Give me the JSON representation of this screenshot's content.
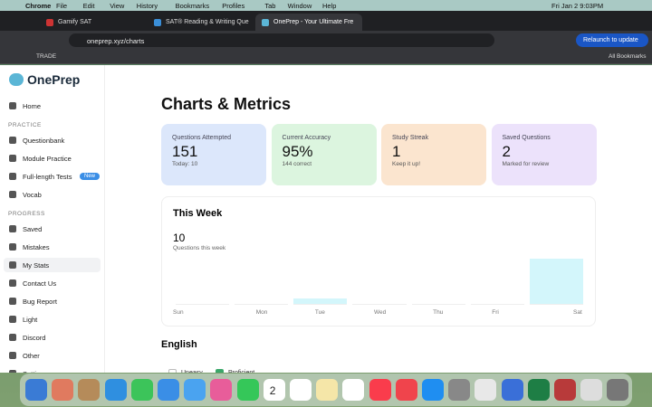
{
  "menubar": {
    "app": "Chrome",
    "menus": [
      "File",
      "Edit",
      "View",
      "History",
      "Bookmarks",
      "Profiles",
      "Tab",
      "Window",
      "Help"
    ],
    "clock": "Fri Jan 2  9:03PM"
  },
  "tabs": [
    "Gamify SAT",
    "SAT® Reading & Writing Que",
    "OnePrep - Your Ultimate Fre"
  ],
  "address": {
    "url": "oneprep.xyz/charts",
    "update_button": "Relaunch to update"
  },
  "bookmarks": {
    "item": "TRADE",
    "all": "All Bookmarks"
  },
  "sidebar": {
    "logo": "OnePrep",
    "home": "Home",
    "practice": {
      "heading": "PRACTICE",
      "items": [
        "Questionbank",
        "Module Practice",
        "Full-length Tests",
        "Vocab"
      ],
      "badge": "New"
    },
    "progress": {
      "heading": "PROGRESS",
      "items": [
        "Saved",
        "Mistakes",
        "My Stats",
        "Contact Us",
        "Bug Report",
        "Light",
        "Discord",
        "Other",
        "Settings"
      ]
    }
  },
  "main": {
    "title": "Charts & Metrics",
    "cards": [
      {
        "label": "Questions Attempted",
        "value": "151",
        "note": "Today: 10"
      },
      {
        "label": "Current Accuracy",
        "value": "95%",
        "note": "144 correct"
      },
      {
        "label": "Study Streak",
        "value": "1",
        "note": "Keep it up!"
      },
      {
        "label": "Saved Questions",
        "value": "2",
        "note": "Marked for review"
      }
    ],
    "week_chart": {
      "type": "bar",
      "title": "This Week",
      "total": "10",
      "total_label": "Questions this week",
      "categories": [
        "Sun",
        "Mon",
        "Tue",
        "Wed",
        "Thu",
        "Fri",
        "Sat"
      ],
      "values": [
        0,
        0,
        1,
        0,
        0,
        0,
        9
      ],
      "color": "#d3f6fb"
    },
    "english": {
      "title": "English",
      "legend": [
        "Uneasy",
        "Proficient"
      ]
    }
  },
  "dock": {
    "calendar_day": "2"
  }
}
